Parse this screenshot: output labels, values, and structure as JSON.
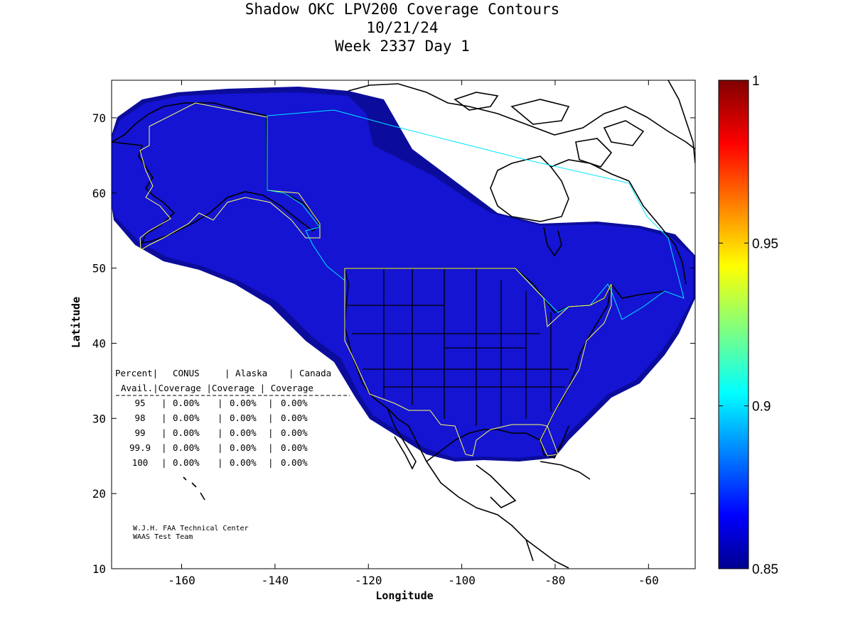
{
  "title": {
    "line1": "Shadow OKC LPV200 Coverage Contours",
    "line2": "10/21/24",
    "line3": "Week 2337 Day 1"
  },
  "chart_data": {
    "type": "map",
    "xlabel": "Longitude",
    "ylabel": "Latitude",
    "xlim": [
      -175,
      -50
    ],
    "ylim": [
      10,
      75
    ],
    "xticks": [
      -160,
      -140,
      -120,
      -100,
      -80,
      -60
    ],
    "yticks": [
      10,
      20,
      30,
      40,
      50,
      60,
      70
    ],
    "colorbar": {
      "range": [
        0.85,
        1
      ],
      "ticks": [
        "0.85",
        "0.9",
        "0.95",
        "1"
      ],
      "colormap": "jet"
    },
    "coverage_fill_color": "#1414d2",
    "coverage_edge_color": "#0c0c9c",
    "service_volume_colors": {
      "conus": "#ffff66",
      "alaska": "#ffff66",
      "canada": "#00e6ff"
    }
  },
  "table": {
    "header1": [
      "Percent|",
      "CONUS",
      "| Alaska",
      "| Canada"
    ],
    "header2": [
      "Avail.|Coverage |Coverage | Coverage"
    ],
    "rows": [
      [
        "95",
        "|",
        "0.00%",
        "|",
        "0.00%",
        "|",
        "0.00%"
      ],
      [
        "98",
        "|",
        "0.00%",
        "|",
        "0.00%",
        "|",
        "0.00%"
      ],
      [
        "99",
        "|",
        "0.00%",
        "|",
        "0.00%",
        "|",
        "0.00%"
      ],
      [
        "99.9",
        "|",
        "0.00%",
        "|",
        "0.00%",
        "|",
        "0.00%"
      ],
      [
        "100",
        "|",
        "0.00%",
        "|",
        "0.00%",
        "|",
        "0.00%"
      ]
    ]
  },
  "credit": {
    "line1": "W.J.H. FAA Technical Center",
    "line2": "WAAS Test Team"
  }
}
